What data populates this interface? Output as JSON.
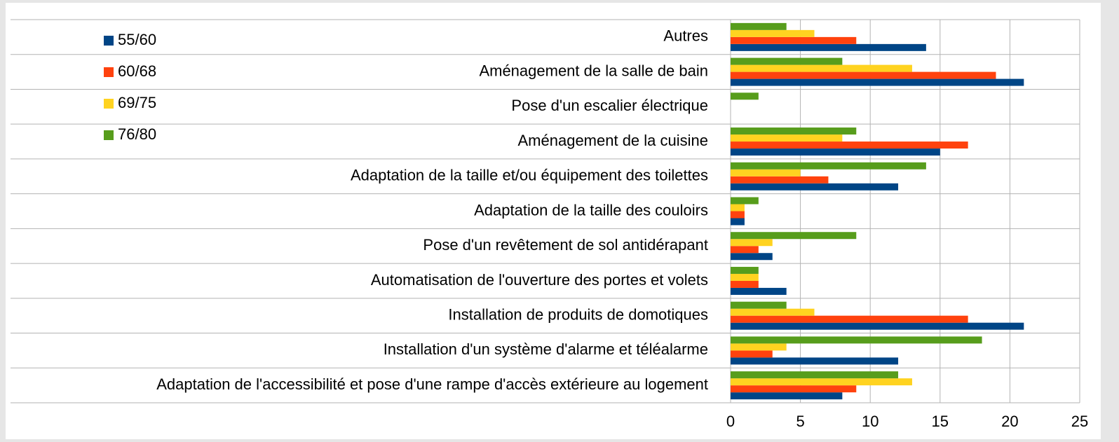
{
  "chart_data": {
    "type": "bar",
    "orientation": "horizontal",
    "categories": [
      "Autres",
      "Aménagement de la salle de bain",
      "Pose d'un escalier électrique",
      "Aménagement de la cuisine",
      "Adaptation de la taille et/ou équipement des toilettes",
      "Adaptation de la taille des couloirs",
      "Pose d'un revêtement de sol antidérapant",
      "Automatisation de l'ouverture des portes et volets",
      "Installation de produits de domotiques",
      "Installation d'un système d'alarme et téléalarme",
      "Adaptation de l'accessibilité et pose d'une rampe d'accès extérieure au logement"
    ],
    "series": [
      {
        "name": "55/60",
        "color": "#004586",
        "values": [
          14,
          21,
          0,
          15,
          12,
          1,
          3,
          4,
          21,
          12,
          8
        ]
      },
      {
        "name": "60/68",
        "color": "#ff420e",
        "values": [
          9,
          19,
          0,
          17,
          7,
          1,
          2,
          2,
          17,
          3,
          9
        ]
      },
      {
        "name": "69/75",
        "color": "#ffd320",
        "values": [
          6,
          13,
          0,
          8,
          5,
          1,
          3,
          2,
          6,
          4,
          13
        ]
      },
      {
        "name": "76/80",
        "color": "#579d1c",
        "values": [
          4,
          8,
          2,
          9,
          14,
          2,
          9,
          2,
          4,
          18,
          12
        ]
      }
    ],
    "xlim": [
      0,
      25
    ],
    "xticks": [
      0,
      5,
      10,
      15,
      20,
      25
    ],
    "grid": true,
    "legend": "upper left"
  }
}
